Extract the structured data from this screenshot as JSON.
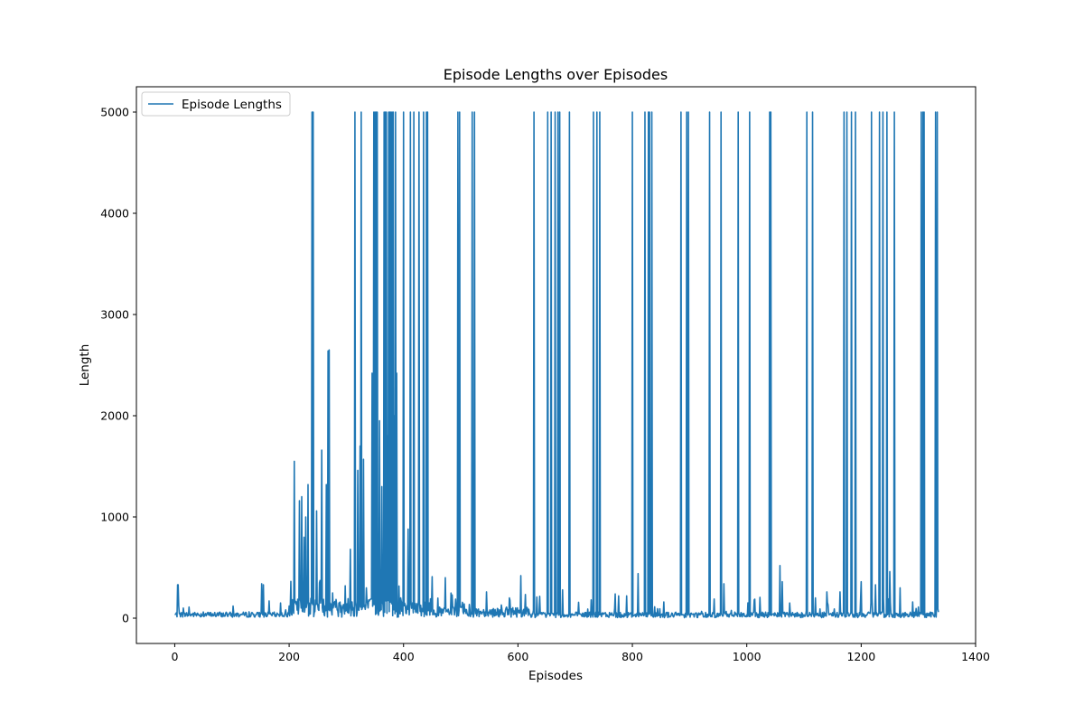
{
  "chart_data": {
    "type": "line",
    "title": "Episode Lengths over Episodes",
    "xlabel": "Episodes",
    "ylabel": "Length",
    "xlim": [
      -67,
      1400
    ],
    "ylim": [
      -250,
      5250
    ],
    "xticks": [
      0,
      200,
      400,
      600,
      800,
      1000,
      1200,
      1400
    ],
    "yticks": [
      0,
      1000,
      2000,
      3000,
      4000,
      5000
    ],
    "grid": false,
    "legend_position": "top-left",
    "series": [
      {
        "name": "Episode Lengths",
        "color": "#1f77b4",
        "x_range": [
          0,
          1335
        ],
        "baseline": {
          "seed": 7,
          "segments": [
            {
              "from": 0,
              "to": 200,
              "min": 10,
              "max": 60,
              "spike_prob": 0.06,
              "spike_max": 130
            },
            {
              "from": 200,
              "to": 460,
              "min": 10,
              "max": 200,
              "spike_prob": 0.1,
              "spike_max": 400
            },
            {
              "from": 460,
              "to": 620,
              "min": 10,
              "max": 110,
              "spike_prob": 0.08,
              "spike_max": 250
            },
            {
              "from": 620,
              "to": 1335,
              "min": 5,
              "max": 60,
              "spike_prob": 0.07,
              "spike_max": 220
            }
          ]
        },
        "points": [
          [
            5,
            330
          ],
          [
            6,
            330
          ],
          [
            7,
            120
          ],
          [
            15,
            100
          ],
          [
            25,
            110
          ],
          [
            102,
            120
          ],
          [
            152,
            340
          ],
          [
            155,
            330
          ],
          [
            165,
            170
          ],
          [
            185,
            150
          ],
          [
            200,
            120
          ],
          [
            209,
            1550
          ],
          [
            218,
            1160
          ],
          [
            222,
            1200
          ],
          [
            226,
            800
          ],
          [
            229,
            1000
          ],
          [
            233,
            1320
          ],
          [
            240,
            5000
          ],
          [
            242,
            5000
          ],
          [
            248,
            1060
          ],
          [
            253,
            350
          ],
          [
            257,
            1660
          ],
          [
            265,
            1320
          ],
          [
            268,
            2640
          ],
          [
            270,
            2650
          ],
          [
            276,
            250
          ],
          [
            288,
            150
          ],
          [
            298,
            320
          ],
          [
            307,
            680
          ],
          [
            315,
            5000
          ],
          [
            320,
            1460
          ],
          [
            324,
            1700
          ],
          [
            326,
            5000
          ],
          [
            330,
            1570
          ],
          [
            335,
            300
          ],
          [
            345,
            2420
          ],
          [
            348,
            5000
          ],
          [
            350,
            5000
          ],
          [
            352,
            5000
          ],
          [
            354,
            5000
          ],
          [
            358,
            1950
          ],
          [
            362,
            1300
          ],
          [
            366,
            5000
          ],
          [
            368,
            5000
          ],
          [
            370,
            5000
          ],
          [
            372,
            1800
          ],
          [
            374,
            5000
          ],
          [
            376,
            5000
          ],
          [
            378,
            5000
          ],
          [
            380,
            5000
          ],
          [
            382,
            5000
          ],
          [
            384,
            2000
          ],
          [
            386,
            5000
          ],
          [
            388,
            2420
          ],
          [
            395,
            200
          ],
          [
            400,
            5000
          ],
          [
            408,
            880
          ],
          [
            412,
            5000
          ],
          [
            418,
            5000
          ],
          [
            427,
            5000
          ],
          [
            435,
            5000
          ],
          [
            440,
            5000
          ],
          [
            442,
            5000
          ],
          [
            450,
            410
          ],
          [
            473,
            400
          ],
          [
            495,
            5000
          ],
          [
            498,
            5000
          ],
          [
            520,
            5000
          ],
          [
            524,
            5000
          ],
          [
            545,
            260
          ],
          [
            585,
            200
          ],
          [
            605,
            420
          ],
          [
            628,
            5000
          ],
          [
            652,
            5000
          ],
          [
            658,
            5000
          ],
          [
            665,
            5000
          ],
          [
            670,
            5000
          ],
          [
            673,
            5000
          ],
          [
            678,
            280
          ],
          [
            690,
            5000
          ],
          [
            732,
            5000
          ],
          [
            738,
            5000
          ],
          [
            743,
            5000
          ],
          [
            770,
            240
          ],
          [
            790,
            220
          ],
          [
            800,
            5000
          ],
          [
            810,
            440
          ],
          [
            822,
            5000
          ],
          [
            828,
            5000
          ],
          [
            830,
            5000
          ],
          [
            834,
            5000
          ],
          [
            855,
            160
          ],
          [
            885,
            5000
          ],
          [
            895,
            5000
          ],
          [
            898,
            5000
          ],
          [
            935,
            5000
          ],
          [
            955,
            5000
          ],
          [
            960,
            340
          ],
          [
            985,
            5000
          ],
          [
            1005,
            5000
          ],
          [
            1040,
            5000
          ],
          [
            1042,
            5000
          ],
          [
            1058,
            520
          ],
          [
            1062,
            360
          ],
          [
            1075,
            150
          ],
          [
            1105,
            5000
          ],
          [
            1115,
            5000
          ],
          [
            1120,
            200
          ],
          [
            1140,
            260
          ],
          [
            1163,
            260
          ],
          [
            1170,
            5000
          ],
          [
            1175,
            5000
          ],
          [
            1183,
            5000
          ],
          [
            1190,
            5000
          ],
          [
            1200,
            360
          ],
          [
            1218,
            5000
          ],
          [
            1225,
            330
          ],
          [
            1232,
            5000
          ],
          [
            1238,
            5000
          ],
          [
            1245,
            5000
          ],
          [
            1250,
            460
          ],
          [
            1258,
            5000
          ],
          [
            1268,
            300
          ],
          [
            1300,
            110
          ],
          [
            1305,
            5000
          ],
          [
            1308,
            5000
          ],
          [
            1310,
            5000
          ],
          [
            1330,
            5000
          ],
          [
            1333,
            5000
          ],
          [
            1335,
            60
          ]
        ]
      }
    ]
  }
}
